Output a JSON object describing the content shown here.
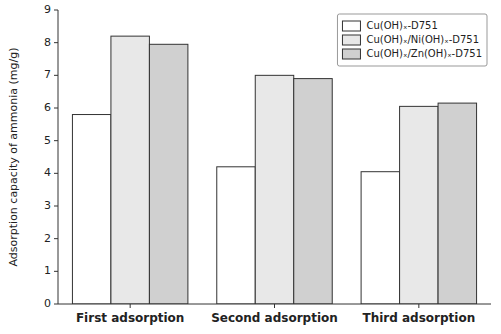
{
  "chart_data": {
    "type": "bar",
    "categories": [
      "First adsorption",
      "Second adsorption",
      "Third adsorption"
    ],
    "series": [
      {
        "name": "Cu(OH)ₓ-D751",
        "color": "white",
        "values": [
          5.8,
          4.2,
          4.05
        ]
      },
      {
        "name": "Cu(OH)ₓ/Ni(OH)ₓ-D751",
        "color": "#e8e8e8",
        "values": [
          8.2,
          7.0,
          6.05
        ]
      },
      {
        "name": "Cu(OH)ₓ/Zn(OH)ₓ-D751",
        "color": "#d0d0d0",
        "values": [
          7.95,
          6.9,
          6.15
        ]
      }
    ],
    "y_label": "Adsorption capacity of ammonia (mg/g)",
    "ylim": [
      0,
      9
    ],
    "yticks": [
      0,
      1,
      2,
      3,
      4,
      5,
      6,
      7,
      8,
      9
    ],
    "grid": false,
    "legend": "upper right"
  }
}
